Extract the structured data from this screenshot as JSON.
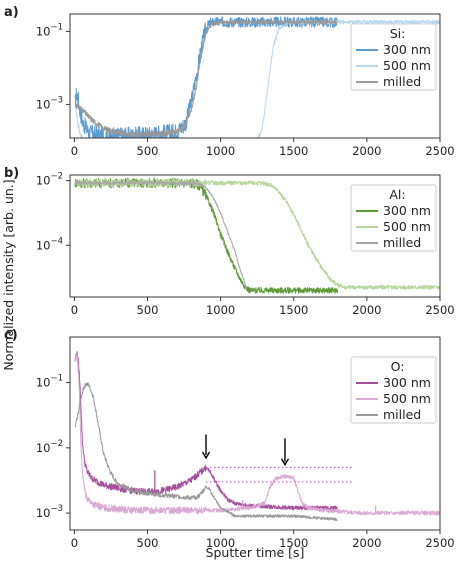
{
  "axis_labels": {
    "ylabel": "Normalized intensity [arb. un.]",
    "xlabel": "Sputter time [s]"
  },
  "chart_data": [
    {
      "panel": "a)",
      "type": "line",
      "legend_title": "Si:",
      "legend_position": "right",
      "xlim": [
        -30,
        2500
      ],
      "xticks": [
        0,
        500,
        1000,
        1500,
        2000,
        2500
      ],
      "yscale": "log",
      "ylim": [
        0.00012,
        0.3
      ],
      "yticks": [
        {
          "value": 0.1,
          "label": "10^-1"
        },
        {
          "value": 0.001,
          "label": "10^-3"
        }
      ],
      "series": [
        {
          "name": "300 nm",
          "color": "#5a9bd1",
          "noise": 0.55,
          "x": [
            5,
            15,
            25,
            40,
            60,
            100,
            200,
            300,
            400,
            500,
            600,
            700,
            760,
            800,
            840,
            870,
            900,
            930,
            960,
            1000,
            1200,
            1500,
            1800
          ],
          "y": [
            0.001,
            0.002,
            0.0015,
            0.0006,
            0.0003,
            0.00017,
            0.00013,
            0.00014,
            0.00014,
            0.00015,
            0.00016,
            0.00018,
            0.0003,
            0.0012,
            0.008,
            0.04,
            0.12,
            0.17,
            0.18,
            0.18,
            0.18,
            0.18,
            0.18
          ]
        },
        {
          "name": "500 nm",
          "color": "#b6d7ef",
          "noise": 0.2,
          "x": [
            5,
            15,
            25,
            40,
            60,
            100,
            200,
            400,
            700,
            1000,
            1200,
            1250,
            1280,
            1300,
            1330,
            1360,
            1400,
            1450,
            1500,
            2000,
            2500
          ],
          "y": [
            0.0009,
            0.0006,
            0.0003,
            0.00015,
            0.00011,
            0.0001,
            0.0001,
            0.0001,
            0.0001,
            0.0001,
            0.0001,
            0.00011,
            0.00018,
            0.0006,
            0.005,
            0.04,
            0.12,
            0.17,
            0.18,
            0.18,
            0.18
          ]
        },
        {
          "name": "milled",
          "color": "#999999",
          "noise": 0.18,
          "x": [
            5,
            20,
            40,
            70,
            100,
            150,
            200,
            300,
            400,
            500,
            600,
            700,
            750,
            800,
            840,
            870,
            900,
            940,
            1000,
            1200,
            1500,
            1800
          ],
          "y": [
            0.001,
            0.0009,
            0.0008,
            0.0006,
            0.00045,
            0.0003,
            0.00022,
            0.00017,
            0.00015,
            0.00015,
            0.00016,
            0.00018,
            0.00025,
            0.0007,
            0.004,
            0.025,
            0.09,
            0.16,
            0.18,
            0.18,
            0.18,
            0.18
          ]
        }
      ]
    },
    {
      "panel": "b)",
      "type": "line",
      "legend_title": "Al:",
      "legend_position": "right",
      "xlim": [
        -30,
        2500
      ],
      "xticks": [
        0,
        500,
        1000,
        1500,
        2000,
        2500
      ],
      "yscale": "log",
      "ylim": [
        2.5e-06,
        0.015
      ],
      "yticks": [
        {
          "value": 0.01,
          "label": "10^-2"
        },
        {
          "value": 0.0001,
          "label": "10^-4"
        }
      ],
      "series": [
        {
          "name": "300 nm",
          "color": "#5d9b36",
          "noise": 0.35,
          "x": [
            5,
            20,
            40,
            100,
            300,
            600,
            800,
            850,
            880,
            920,
            960,
            1000,
            1050,
            1100,
            1140,
            1170,
            1200,
            1300,
            1500,
            1800
          ],
          "y": [
            0.0085,
            0.009,
            0.0085,
            0.0085,
            0.0085,
            0.0085,
            0.0085,
            0.0075,
            0.005,
            0.0022,
            0.0008,
            0.00022,
            6e-05,
            1.8e-05,
            8e-06,
            5e-06,
            4e-06,
            4e-06,
            4e-06,
            4e-06
          ]
        },
        {
          "name": "500 nm",
          "color": "#b7d59a",
          "noise": 0.25,
          "x": [
            5,
            20,
            40,
            100,
            500,
            900,
            1200,
            1300,
            1350,
            1400,
            1450,
            1500,
            1550,
            1600,
            1650,
            1700,
            1750,
            1800,
            1850,
            2000,
            2500
          ],
          "y": [
            0.0085,
            0.009,
            0.0085,
            0.0085,
            0.0085,
            0.0085,
            0.0085,
            0.0082,
            0.007,
            0.0045,
            0.0022,
            0.0009,
            0.0003,
            0.0001,
            4e-05,
            1.8e-05,
            9e-06,
            6e-06,
            5e-06,
            5e-06,
            5e-06
          ]
        },
        {
          "name": "milled",
          "color": "#a6a6a6",
          "noise": 0.12,
          "x": [
            5,
            20,
            40,
            100,
            500,
            850,
            900,
            950,
            1000,
            1050,
            1100,
            1130,
            1160,
            1180
          ],
          "y": [
            0.008,
            0.0088,
            0.0085,
            0.0085,
            0.0085,
            0.0082,
            0.006,
            0.003,
            0.001,
            0.00025,
            6e-05,
            2e-05,
            8e-06,
            4e-06
          ]
        }
      ]
    },
    {
      "panel": "c)",
      "type": "line",
      "legend_title": "O:",
      "legend_position": "top-right",
      "xlim": [
        -30,
        2500
      ],
      "xticks": [
        0,
        500,
        1000,
        1500,
        2000,
        2500
      ],
      "yscale": "log",
      "ylim": [
        0.00055,
        0.5
      ],
      "yticks": [
        {
          "value": 0.1,
          "label": "10^-1"
        },
        {
          "value": 0.01,
          "label": "10^-2"
        },
        {
          "value": 0.001,
          "label": "10^-3"
        }
      ],
      "series": [
        {
          "name": "300 nm",
          "color": "#a64d9c",
          "noise": 0.12,
          "x": [
            5,
            15,
            25,
            35,
            45,
            55,
            70,
            90,
            120,
            160,
            200,
            300,
            400,
            500,
            600,
            700,
            800,
            850,
            880,
            900,
            920,
            950,
            1000,
            1050,
            1100,
            1200,
            1500,
            1800
          ],
          "y": [
            0.22,
            0.28,
            0.25,
            0.12,
            0.04,
            0.012,
            0.006,
            0.0042,
            0.0034,
            0.003,
            0.0027,
            0.0024,
            0.0022,
            0.0021,
            0.0022,
            0.0025,
            0.0032,
            0.004,
            0.0046,
            0.005,
            0.0045,
            0.0035,
            0.0022,
            0.0016,
            0.0014,
            0.0013,
            0.0012,
            0.0012
          ]
        },
        {
          "name": "500 nm",
          "color": "#d9a8d4",
          "noise": 0.12,
          "x": [
            5,
            15,
            25,
            35,
            45,
            60,
            80,
            120,
            200,
            400,
            800,
            1000,
            1200,
            1300,
            1340,
            1380,
            1420,
            1460,
            1500,
            1520,
            1560,
            1600,
            1700,
            2000,
            2500
          ],
          "y": [
            0.2,
            0.26,
            0.2,
            0.06,
            0.01,
            0.003,
            0.0018,
            0.0014,
            0.0012,
            0.0011,
            0.0011,
            0.0011,
            0.0012,
            0.0014,
            0.0026,
            0.0034,
            0.0036,
            0.0037,
            0.0034,
            0.0025,
            0.0014,
            0.0012,
            0.0011,
            0.001,
            0.001
          ]
        },
        {
          "name": "milled",
          "color": "#9a9a9a",
          "noise": 0.08,
          "x": [
            5,
            20,
            40,
            60,
            80,
            100,
            130,
            160,
            200,
            250,
            300,
            400,
            500,
            600,
            700,
            800,
            850,
            880,
            900,
            920,
            950,
            1000,
            1100,
            1200,
            1500,
            1800
          ],
          "y": [
            0.02,
            0.03,
            0.05,
            0.08,
            0.095,
            0.09,
            0.06,
            0.025,
            0.008,
            0.004,
            0.0028,
            0.0022,
            0.002,
            0.0019,
            0.0018,
            0.0017,
            0.0018,
            0.0022,
            0.0025,
            0.0024,
            0.0018,
            0.0012,
            0.0009,
            0.0009,
            0.0009,
            0.0008
          ]
        }
      ],
      "spikes": [
        {
          "x": 550,
          "y": 0.0045,
          "series": "300 nm"
        },
        {
          "x": 1150,
          "y": 0.0016,
          "series": "500 nm"
        },
        {
          "x": 2060,
          "y": 0.0013,
          "series": "500 nm"
        }
      ],
      "annotations": [
        {
          "type": "arrow",
          "x": 900,
          "y_from": 0.016,
          "y_to": 0.007
        },
        {
          "type": "arrow",
          "x": 1440,
          "y_from": 0.014,
          "y_to": 0.0055
        },
        {
          "type": "dotted-line",
          "x_from": 900,
          "x_to": 1900,
          "y": 0.005,
          "color": "#c95fc0"
        },
        {
          "type": "dotted-line",
          "x_from": 900,
          "x_to": 1900,
          "y": 0.003,
          "color": "#c95fc0"
        }
      ]
    }
  ]
}
